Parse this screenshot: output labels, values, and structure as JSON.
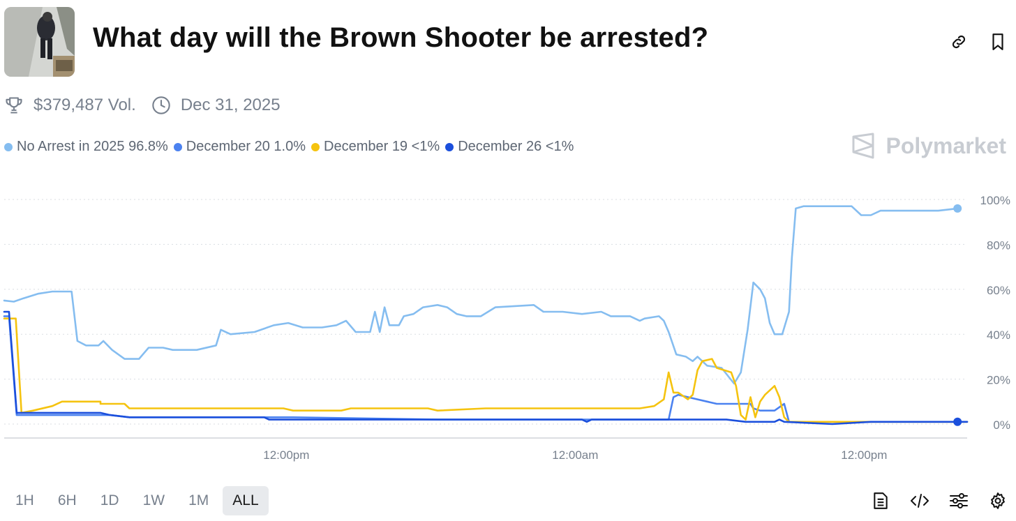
{
  "market": {
    "title": "What day will the Brown Shooter be arrested?",
    "volume": "$379,487 Vol.",
    "end_date": "Dec 31, 2025"
  },
  "icons": {
    "link": "link-icon",
    "bookmark": "bookmark-icon",
    "trophy": "trophy-icon",
    "clock": "clock-icon",
    "brand": "polymarket-logo-icon",
    "document": "document-icon",
    "embed": "code-icon",
    "filters": "sliders-icon",
    "settings": "gear-icon"
  },
  "brand": "Polymarket",
  "legend": [
    {
      "label": "No Arrest in 2025 96.8%",
      "color": "#85bdf0"
    },
    {
      "label": "December 20 1.0%",
      "color": "#4b82f0"
    },
    {
      "label": "December 19 <1%",
      "color": "#f5c30f"
    },
    {
      "label": "December 26 <1%",
      "color": "#1b4fdc"
    }
  ],
  "tabs": [
    "1H",
    "6H",
    "1D",
    "1W",
    "1M",
    "ALL"
  ],
  "active_tab": "ALL",
  "chart_data": {
    "type": "line",
    "y_ticks": [
      "100%",
      "80%",
      "60%",
      "40%",
      "20%",
      "0%"
    ],
    "ylim": [
      0,
      100
    ],
    "x_ticks": [
      {
        "label": "12:00pm",
        "x": 0.293
      },
      {
        "label": "12:00am",
        "x": 0.593
      },
      {
        "label": "12:00pm",
        "x": 0.893
      }
    ],
    "xlim": [
      0,
      1
    ],
    "grid": "horizontal dotted",
    "series": [
      {
        "name": "No Arrest in 2025",
        "color": "#85bdf0",
        "end_marker": true,
        "points": [
          [
            0,
            55
          ],
          [
            0.01,
            54.5
          ],
          [
            0.02,
            56
          ],
          [
            0.035,
            58
          ],
          [
            0.05,
            59
          ],
          [
            0.065,
            59
          ],
          [
            0.07,
            59
          ],
          [
            0.076,
            37
          ],
          [
            0.085,
            35
          ],
          [
            0.098,
            35
          ],
          [
            0.103,
            37
          ],
          [
            0.112,
            33
          ],
          [
            0.125,
            29
          ],
          [
            0.14,
            29
          ],
          [
            0.15,
            34
          ],
          [
            0.165,
            34
          ],
          [
            0.175,
            33
          ],
          [
            0.2,
            33
          ],
          [
            0.22,
            35
          ],
          [
            0.225,
            42
          ],
          [
            0.235,
            40
          ],
          [
            0.26,
            41
          ],
          [
            0.28,
            44
          ],
          [
            0.295,
            45
          ],
          [
            0.31,
            43
          ],
          [
            0.33,
            43
          ],
          [
            0.345,
            44
          ],
          [
            0.355,
            46
          ],
          [
            0.365,
            41
          ],
          [
            0.38,
            41
          ],
          [
            0.385,
            50
          ],
          [
            0.39,
            41
          ],
          [
            0.395,
            52
          ],
          [
            0.4,
            44
          ],
          [
            0.41,
            44
          ],
          [
            0.415,
            48
          ],
          [
            0.425,
            49
          ],
          [
            0.435,
            52
          ],
          [
            0.45,
            53
          ],
          [
            0.46,
            52
          ],
          [
            0.47,
            49
          ],
          [
            0.48,
            48
          ],
          [
            0.495,
            48
          ],
          [
            0.51,
            52
          ],
          [
            0.55,
            53
          ],
          [
            0.56,
            50
          ],
          [
            0.58,
            50
          ],
          [
            0.6,
            49
          ],
          [
            0.62,
            50
          ],
          [
            0.63,
            48
          ],
          [
            0.65,
            48
          ],
          [
            0.66,
            46
          ],
          [
            0.665,
            47
          ],
          [
            0.68,
            48
          ],
          [
            0.685,
            46
          ],
          [
            0.69,
            41
          ],
          [
            0.698,
            31
          ],
          [
            0.708,
            30
          ],
          [
            0.715,
            28
          ],
          [
            0.72,
            30
          ],
          [
            0.73,
            26
          ],
          [
            0.745,
            25
          ],
          [
            0.758,
            18
          ],
          [
            0.765,
            23
          ],
          [
            0.772,
            42
          ],
          [
            0.778,
            63
          ],
          [
            0.785,
            60
          ],
          [
            0.79,
            56
          ],
          [
            0.795,
            45
          ],
          [
            0.8,
            40
          ],
          [
            0.808,
            40
          ],
          [
            0.815,
            50
          ],
          [
            0.818,
            74
          ],
          [
            0.822,
            96
          ],
          [
            0.83,
            97
          ],
          [
            0.85,
            97
          ],
          [
            0.88,
            97
          ],
          [
            0.89,
            93
          ],
          [
            0.9,
            93
          ],
          [
            0.91,
            95
          ],
          [
            0.93,
            95
          ],
          [
            0.95,
            95
          ],
          [
            0.97,
            95
          ],
          [
            0.99,
            96
          ]
        ]
      },
      {
        "name": "December 20",
        "color": "#4b82f0",
        "end_marker": false,
        "points": [
          [
            0,
            48
          ],
          [
            0.005,
            48
          ],
          [
            0.013,
            4
          ],
          [
            0.03,
            4
          ],
          [
            0.06,
            4
          ],
          [
            0.11,
            4
          ],
          [
            0.13,
            3
          ],
          [
            0.2,
            3
          ],
          [
            0.27,
            3
          ],
          [
            0.3,
            3
          ],
          [
            0.45,
            2
          ],
          [
            0.6,
            2
          ],
          [
            0.69,
            2
          ],
          [
            0.695,
            12
          ],
          [
            0.7,
            13
          ],
          [
            0.71,
            12
          ],
          [
            0.72,
            11
          ],
          [
            0.73,
            10
          ],
          [
            0.74,
            9
          ],
          [
            0.76,
            9
          ],
          [
            0.775,
            9
          ],
          [
            0.778,
            7
          ],
          [
            0.785,
            6
          ],
          [
            0.8,
            6
          ],
          [
            0.81,
            9
          ],
          [
            0.815,
            1
          ],
          [
            0.83,
            1
          ],
          [
            0.85,
            1
          ],
          [
            0.9,
            1
          ],
          [
            1,
            1
          ]
        ]
      },
      {
        "name": "December 19",
        "color": "#f5c30f",
        "end_marker": false,
        "points": [
          [
            0,
            47
          ],
          [
            0.012,
            47
          ],
          [
            0.018,
            5
          ],
          [
            0.03,
            6
          ],
          [
            0.05,
            8
          ],
          [
            0.06,
            10
          ],
          [
            0.07,
            10
          ],
          [
            0.1,
            10
          ],
          [
            0.1,
            9
          ],
          [
            0.125,
            9
          ],
          [
            0.13,
            7
          ],
          [
            0.15,
            7
          ],
          [
            0.2,
            7
          ],
          [
            0.29,
            7
          ],
          [
            0.3,
            6
          ],
          [
            0.35,
            6
          ],
          [
            0.36,
            7
          ],
          [
            0.38,
            7
          ],
          [
            0.44,
            7
          ],
          [
            0.45,
            6
          ],
          [
            0.5,
            7
          ],
          [
            0.55,
            7
          ],
          [
            0.6,
            7
          ],
          [
            0.66,
            7
          ],
          [
            0.675,
            8
          ],
          [
            0.685,
            11
          ],
          [
            0.69,
            23
          ],
          [
            0.695,
            14
          ],
          [
            0.7,
            14
          ],
          [
            0.71,
            11
          ],
          [
            0.715,
            13
          ],
          [
            0.72,
            24
          ],
          [
            0.725,
            28
          ],
          [
            0.735,
            29
          ],
          [
            0.74,
            25
          ],
          [
            0.755,
            23
          ],
          [
            0.76,
            17
          ],
          [
            0.765,
            4
          ],
          [
            0.77,
            2
          ],
          [
            0.775,
            12
          ],
          [
            0.78,
            3
          ],
          [
            0.785,
            10
          ],
          [
            0.79,
            13
          ],
          [
            0.8,
            17
          ],
          [
            0.805,
            12
          ],
          [
            0.81,
            3
          ],
          [
            0.815,
            1
          ],
          [
            0.85,
            1
          ],
          [
            1,
            1
          ]
        ]
      },
      {
        "name": "December 26",
        "color": "#1b4fdc",
        "end_marker": true,
        "points": [
          [
            0,
            50
          ],
          [
            0.005,
            50
          ],
          [
            0.013,
            5
          ],
          [
            0.04,
            5
          ],
          [
            0.07,
            5
          ],
          [
            0.1,
            5
          ],
          [
            0.11,
            4
          ],
          [
            0.13,
            3
          ],
          [
            0.27,
            3
          ],
          [
            0.275,
            2
          ],
          [
            0.3,
            2
          ],
          [
            0.4,
            2
          ],
          [
            0.45,
            2
          ],
          [
            0.5,
            2
          ],
          [
            0.55,
            2
          ],
          [
            0.6,
            2
          ],
          [
            0.605,
            1
          ],
          [
            0.61,
            2
          ],
          [
            0.65,
            2
          ],
          [
            0.7,
            2
          ],
          [
            0.75,
            2
          ],
          [
            0.77,
            1
          ],
          [
            0.8,
            1
          ],
          [
            0.805,
            2
          ],
          [
            0.81,
            1
          ],
          [
            0.86,
            0
          ],
          [
            0.9,
            1
          ],
          [
            0.95,
            1
          ],
          [
            0.99,
            1
          ],
          [
            1,
            1
          ]
        ]
      }
    ]
  }
}
